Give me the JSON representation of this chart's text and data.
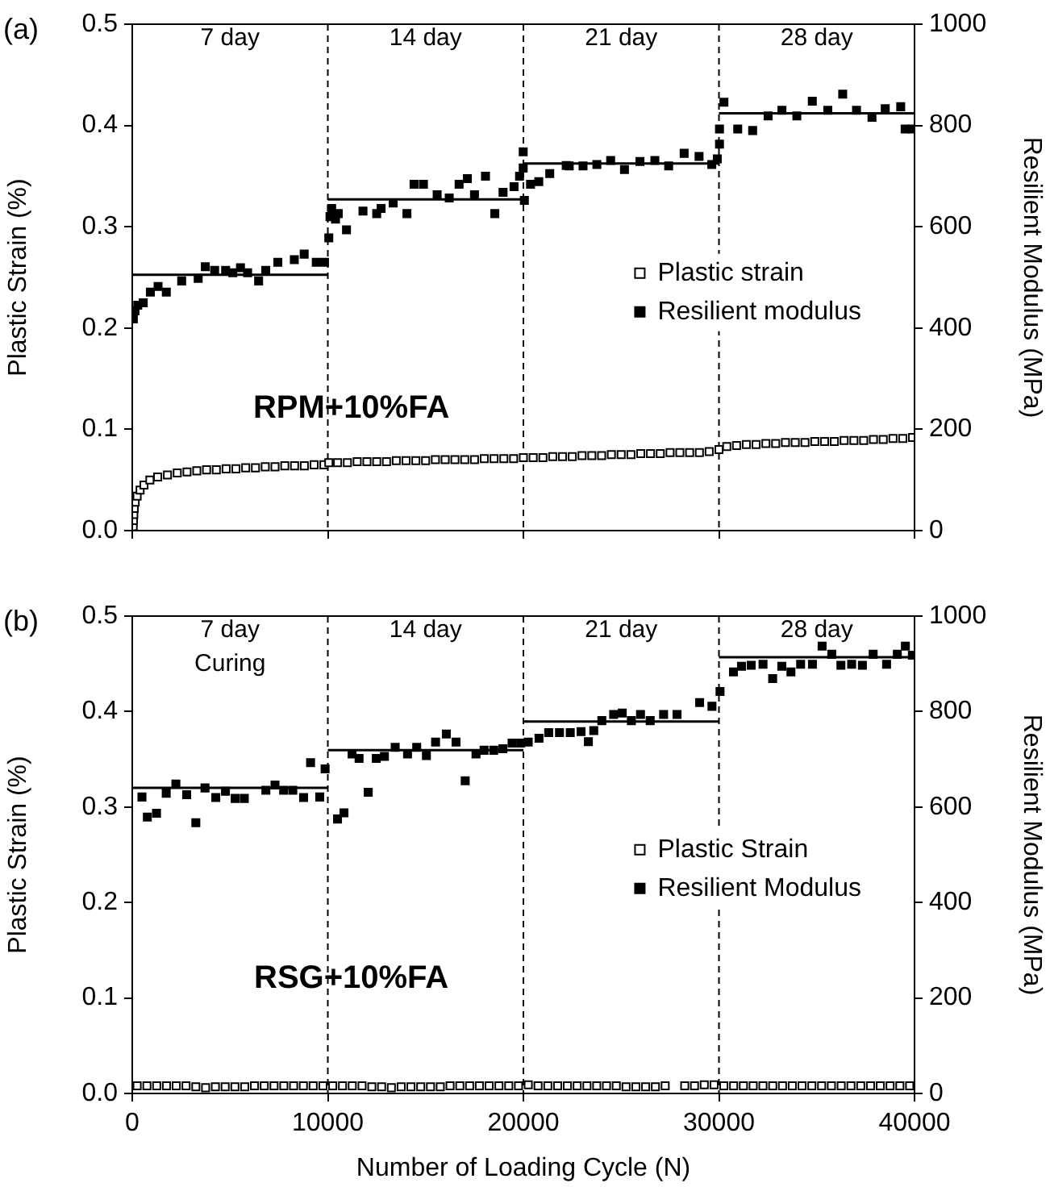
{
  "chart_data": [
    {
      "type": "scatter",
      "title": "(a)",
      "ylabel": "Plastic Strain (%)",
      "y2label": "Resilient Modulus (MPa)",
      "xlim": [
        0,
        40000
      ],
      "xticks": [
        0,
        10000,
        20000,
        30000,
        40000
      ],
      "ylim": [
        0,
        0.5
      ],
      "yticks": [
        {
          "value": 0,
          "label": "0.0"
        },
        0.1,
        0.2,
        0.3,
        0.4,
        0.5
      ],
      "y2lim": [
        0,
        1000
      ],
      "y2ticks": [
        0,
        200,
        400,
        600,
        800,
        1000
      ],
      "tick_labels": "y",
      "legend": "right",
      "annotations": [
        "RPM+10%FA",
        "7 day",
        "14 day",
        "21 day",
        "28 day"
      ],
      "ref_lines": [
        {
          "axis": "x",
          "value": 10000,
          "line_style": "dashed"
        },
        {
          "axis": "x",
          "value": 20000,
          "line_style": "dashed"
        },
        {
          "axis": "x",
          "value": 30000,
          "line_style": "dashed"
        }
      ],
      "series": [
        {
          "name": "Plastic strain",
          "marker": "square",
          "color": "#ffffff",
          "x": [
            50,
            60,
            80,
            100,
            150,
            250,
            400,
            600,
            900,
            1300,
            1800,
            2300,
            2800,
            3300,
            3800,
            4300,
            4800,
            5300,
            5800,
            6300,
            6800,
            7300,
            7800,
            8300,
            8800,
            9300,
            9800,
            10050,
            10500,
            11000,
            11500,
            12000,
            12500,
            13000,
            13500,
            14000,
            14500,
            15000,
            15500,
            16000,
            16500,
            17000,
            17500,
            18000,
            18500,
            19000,
            19500,
            20000,
            20500,
            21000,
            21500,
            22000,
            22500,
            23000,
            23500,
            24000,
            24500,
            25000,
            25500,
            26000,
            26500,
            27000,
            27500,
            28000,
            28500,
            29000,
            29500,
            30000,
            30400,
            30900,
            31400,
            31900,
            32400,
            32900,
            33400,
            33900,
            34400,
            34900,
            35400,
            35900,
            36400,
            36900,
            37400,
            37900,
            38400,
            38900,
            39400,
            39900
          ],
          "values": [
            0.004,
            0.01,
            0.016,
            0.022,
            0.028,
            0.034,
            0.04,
            0.045,
            0.05,
            0.053,
            0.055,
            0.057,
            0.058,
            0.059,
            0.06,
            0.06,
            0.061,
            0.061,
            0.062,
            0.062,
            0.063,
            0.063,
            0.064,
            0.064,
            0.064,
            0.065,
            0.065,
            0.067,
            0.067,
            0.067,
            0.068,
            0.068,
            0.068,
            0.068,
            0.069,
            0.069,
            0.069,
            0.069,
            0.07,
            0.07,
            0.07,
            0.07,
            0.07,
            0.071,
            0.071,
            0.071,
            0.071,
            0.072,
            0.072,
            0.072,
            0.073,
            0.073,
            0.073,
            0.074,
            0.074,
            0.074,
            0.075,
            0.075,
            0.075,
            0.076,
            0.076,
            0.076,
            0.077,
            0.077,
            0.077,
            0.077,
            0.078,
            0.08,
            0.083,
            0.084,
            0.085,
            0.085,
            0.086,
            0.086,
            0.087,
            0.087,
            0.087,
            0.088,
            0.088,
            0.088,
            0.089,
            0.089,
            0.089,
            0.09,
            0.09,
            0.091,
            0.091,
            0.092
          ]
        },
        {
          "name": "Resilient modulus",
          "marker": "square",
          "axis": "y2",
          "color": "#000000",
          "x": [
            56,
            140,
            281,
            562,
            927,
            1320,
            1742,
            2528,
            3371,
            3736,
            4213,
            4775,
            5140,
            5534,
            5899,
            6461,
            6826,
            7444,
            8287,
            8792,
            9410,
            9831,
            10050,
            10112,
            10197,
            10393,
            10534,
            10955,
            11798,
            12500,
            12725,
            13343,
            14045,
            14410,
            14888,
            15590,
            16208,
            16713,
            17135,
            17500,
            18062,
            18539,
            18960,
            19522,
            19803,
            19990,
            19990,
            20050,
            20365,
            20787,
            21348,
            22191,
            22345,
            23051,
            23757,
            24463,
            25169,
            25960,
            26723,
            27429,
            28220,
            28983,
            29633,
            29915,
            30028,
            30028,
            30254,
            30960,
            31723,
            32514,
            33220,
            33983,
            34774,
            35565,
            36328,
            37034,
            37825,
            38503,
            39294,
            39520,
            39900
          ],
          "values": [
            418,
            434,
            445,
            450,
            471,
            482,
            471,
            493,
            498,
            521,
            514,
            514,
            509,
            519,
            509,
            493,
            514,
            530,
            535,
            546,
            530,
            530,
            578,
            620,
            636,
            615,
            626,
            594,
            631,
            626,
            636,
            647,
            626,
            684,
            684,
            663,
            657,
            684,
            695,
            663,
            700,
            626,
            668,
            679,
            700,
            748,
            716,
            652,
            684,
            689,
            705,
            721,
            720,
            720,
            723,
            731,
            713,
            729,
            731,
            720,
            745,
            739,
            723,
            734,
            763,
            793,
            846,
            793,
            790,
            819,
            830,
            819,
            848,
            830,
            862,
            830,
            816,
            833,
            837,
            793,
            793
          ]
        },
        {
          "type": "line",
          "marker": "none",
          "axis": "y2",
          "color": "#000000",
          "x": [
            0,
            10000
          ],
          "values": [
            505,
            505
          ]
        },
        {
          "type": "line",
          "marker": "none",
          "axis": "y2",
          "color": "#000000",
          "x": [
            10000,
            20000
          ],
          "values": [
            654,
            654
          ]
        },
        {
          "type": "line",
          "marker": "none",
          "axis": "y2",
          "color": "#000000",
          "x": [
            20000,
            30000
          ],
          "values": [
            725,
            725
          ]
        },
        {
          "type": "line",
          "marker": "none",
          "axis": "y2",
          "color": "#000000",
          "x": [
            30000,
            40000
          ],
          "values": [
            824,
            824
          ]
        }
      ]
    },
    {
      "type": "scatter",
      "title": "(b)",
      "xlabel": "Number of Loading Cycle (N)",
      "ylabel": "Plastic Strain (%)",
      "y2label": "Resilient Modulus (MPa)",
      "xlim": [
        0,
        40000
      ],
      "xticks": [
        0,
        10000,
        20000,
        30000,
        40000
      ],
      "ylim": [
        0,
        0.5
      ],
      "yticks": [
        {
          "value": 0,
          "label": "0.0"
        },
        0.1,
        0.2,
        0.3,
        0.4,
        0.5
      ],
      "y2lim": [
        0,
        1000
      ],
      "y2ticks": [
        0,
        200,
        400,
        600,
        800,
        1000
      ],
      "legend": "right",
      "annotations": [
        "RSG+10%FA",
        "7 day\nCuring",
        "14 day",
        "21 day",
        "28 day"
      ],
      "ref_lines": [
        {
          "axis": "x",
          "value": 10000,
          "line_style": "dashed"
        },
        {
          "axis": "x",
          "value": 20000,
          "line_style": "dashed"
        },
        {
          "axis": "x",
          "value": 30000,
          "line_style": "dashed"
        }
      ],
      "series": [
        {
          "name": "Plastic Strain",
          "marker": "square",
          "color": "#ffffff",
          "x": [
            250,
            750,
            1250,
            1750,
            2250,
            2750,
            3250,
            3750,
            4250,
            4750,
            5250,
            5750,
            6250,
            6750,
            7250,
            7750,
            8250,
            8750,
            9250,
            9750,
            10250,
            10750,
            11250,
            11750,
            12250,
            12750,
            13250,
            13750,
            14250,
            14750,
            15250,
            15750,
            16250,
            16750,
            17250,
            17750,
            18250,
            18750,
            19250,
            19750,
            20250,
            20750,
            21250,
            21750,
            22250,
            22750,
            23250,
            23750,
            24250,
            24750,
            25250,
            25750,
            26250,
            26750,
            27250,
            28250,
            28750,
            29250,
            29750,
            30250,
            30750,
            31250,
            31750,
            32250,
            32750,
            33250,
            33750,
            34250,
            34750,
            35250,
            35750,
            36250,
            36750,
            37250,
            37750,
            38250,
            38750,
            39250,
            39750
          ],
          "values": [
            0.008,
            0.008,
            0.008,
            0.008,
            0.008,
            0.008,
            0.007,
            0.006,
            0.007,
            0.007,
            0.007,
            0.007,
            0.008,
            0.008,
            0.008,
            0.008,
            0.008,
            0.008,
            0.008,
            0.008,
            0.008,
            0.008,
            0.008,
            0.008,
            0.007,
            0.007,
            0.006,
            0.007,
            0.007,
            0.007,
            0.007,
            0.007,
            0.008,
            0.008,
            0.008,
            0.008,
            0.008,
            0.008,
            0.008,
            0.008,
            0.009,
            0.008,
            0.008,
            0.008,
            0.008,
            0.008,
            0.008,
            0.008,
            0.008,
            0.008,
            0.007,
            0.007,
            0.007,
            0.007,
            0.008,
            0.008,
            0.008,
            0.009,
            0.009,
            0.008,
            0.008,
            0.008,
            0.008,
            0.008,
            0.008,
            0.008,
            0.008,
            0.008,
            0.008,
            0.008,
            0.008,
            0.008,
            0.008,
            0.008,
            0.008,
            0.008,
            0.008,
            0.008,
            0.008
          ]
        },
        {
          "name": "Resilient Modulus",
          "marker": "square",
          "axis": "y2",
          "color": "#000000",
          "x": [
            496,
            771,
            1240,
            1736,
            2231,
            2782,
            3251,
            3719,
            4270,
            4766,
            5262,
            5730,
            6832,
            7300,
            7741,
            8209,
            8760,
            9118,
            9587,
            9862,
            10496,
            10826,
            11240,
            11598,
            12066,
            12479,
            12893,
            13444,
            14077,
            14545,
            15041,
            15510,
            16061,
            16556,
            17025,
            17576,
            17989,
            18485,
            18953,
            19421,
            19862,
            20248,
            20799,
            21295,
            21846,
            22397,
            22948,
            23324,
            23599,
            24011,
            24615,
            25055,
            25522,
            25989,
            26484,
            27170,
            27857,
            29011,
            29643,
            30055,
            30742,
            31154,
            31648,
            32253,
            32747,
            33214,
            33681,
            34176,
            34780,
            35275,
            35769,
            36236,
            36786,
            37335,
            37885,
            38571,
            39121,
            39533,
            39890
          ],
          "values": [
            621,
            579,
            587,
            629,
            648,
            626,
            567,
            640,
            620,
            633,
            618,
            618,
            635,
            646,
            635,
            635,
            620,
            693,
            621,
            680,
            575,
            588,
            711,
            702,
            631,
            702,
            706,
            725,
            711,
            725,
            708,
            736,
            753,
            736,
            655,
            711,
            719,
            719,
            722,
            734,
            734,
            736,
            744,
            756,
            756,
            756,
            758,
            737,
            760,
            781,
            794,
            797,
            781,
            794,
            781,
            794,
            794,
            819,
            811,
            842,
            883,
            895,
            897,
            899,
            869,
            895,
            883,
            899,
            899,
            937,
            920,
            897,
            899,
            897,
            920,
            899,
            920,
            937,
            918
          ]
        },
        {
          "type": "line",
          "marker": "none",
          "axis": "y2",
          "color": "#000000",
          "x": [
            0,
            10000
          ],
          "values": [
            640,
            640
          ]
        },
        {
          "type": "line",
          "marker": "none",
          "axis": "y2",
          "color": "#000000",
          "x": [
            10000,
            20000
          ],
          "values": [
            719,
            719
          ]
        },
        {
          "type": "line",
          "marker": "none",
          "axis": "y2",
          "color": "#000000",
          "x": [
            20000,
            30000
          ],
          "values": [
            779,
            779
          ]
        },
        {
          "type": "line",
          "marker": "none",
          "axis": "y2",
          "color": "#000000",
          "x": [
            30000,
            40000
          ],
          "values": [
            914,
            914
          ]
        }
      ]
    }
  ]
}
